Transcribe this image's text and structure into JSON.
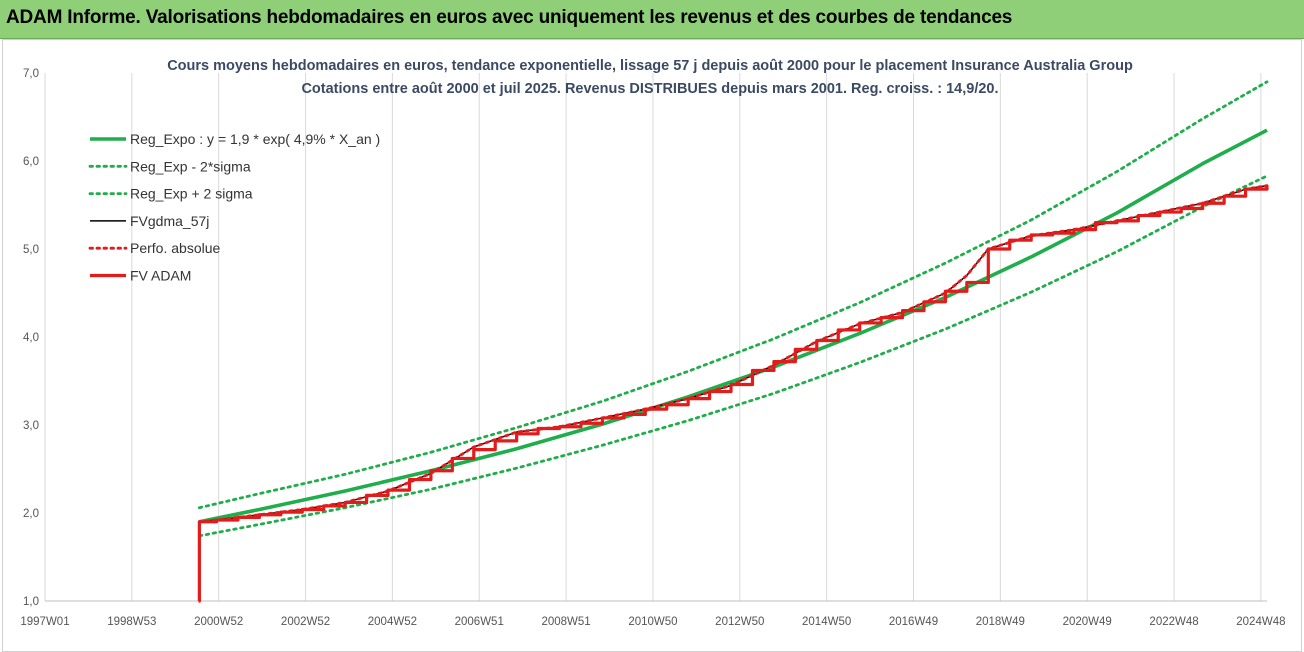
{
  "header": {
    "title": "ADAM Informe. Valorisations hebdomadaires en euros avec uniquement les revenus et des courbes de tendances"
  },
  "chart_data": {
    "type": "line",
    "title": "Cours moyens hebdomadaires en euros, tendance exponentielle, lissage 57 j depuis août 2000 pour le placement  Insurance Australia Group",
    "subtitle": "Cotations entre août 2000 et juil 2025. Revenus DISTRIBUES depuis mars 2001. Reg. croiss. : 14,9/20.",
    "xlabel": "",
    "ylabel": "",
    "xlim": [
      1997.0,
      2025.5
    ],
    "ylim": [
      1.0,
      7.0
    ],
    "x_ticks": [
      "1997W01",
      "1998W53",
      "2000W52",
      "2002W52",
      "2004W52",
      "2006W51",
      "2008W51",
      "2010W50",
      "2012W50",
      "2014W50",
      "2016W49",
      "2018W49",
      "2020W49",
      "2022W48",
      "2024W48"
    ],
    "y_ticks": [
      "1,0",
      "2,0",
      "3,0",
      "4,0",
      "5,0",
      "6,0",
      "7,0"
    ],
    "grid": "vertical",
    "legend_position": "top-left",
    "series": [
      {
        "name": "Reg_Expo : y = 1,9 * exp( 4,9% *  X_an )",
        "color": "#1fae4b",
        "style": "solid",
        "x": [
          2000.6,
          2002,
          2004,
          2006,
          2008,
          2010,
          2012,
          2014,
          2016,
          2018,
          2020,
          2022,
          2024,
          2025.5
        ],
        "values": [
          1.9,
          2.04,
          2.25,
          2.48,
          2.73,
          3.01,
          3.32,
          3.66,
          4.04,
          4.45,
          4.91,
          5.41,
          5.97,
          6.35
        ]
      },
      {
        "name": "Reg_Exp - 2*sigma",
        "color": "#1fae4b",
        "style": "dotted",
        "x": [
          2000.6,
          2002,
          2004,
          2006,
          2008,
          2010,
          2012,
          2014,
          2016,
          2018,
          2020,
          2022,
          2024,
          2025.5
        ],
        "values": [
          1.74,
          1.87,
          2.06,
          2.27,
          2.51,
          2.77,
          3.05,
          3.36,
          3.71,
          4.09,
          4.51,
          4.97,
          5.48,
          5.83
        ]
      },
      {
        "name": "Reg_Exp + 2 sigma",
        "color": "#1fae4b",
        "style": "dotted",
        "x": [
          2000.6,
          2002,
          2004,
          2006,
          2008,
          2010,
          2012,
          2014,
          2016,
          2018,
          2020,
          2022,
          2024,
          2025.5
        ],
        "values": [
          2.06,
          2.22,
          2.44,
          2.69,
          2.97,
          3.27,
          3.61,
          3.98,
          4.39,
          4.84,
          5.33,
          5.88,
          6.48,
          6.9
        ]
      },
      {
        "name": "FVgdma_57j",
        "color": "#000000",
        "style": "solid",
        "x": [
          2000.6,
          2001.0,
          2002.0,
          2003.0,
          2004.0,
          2005.0,
          2006.0,
          2007.0,
          2008.0,
          2009.0,
          2010.0,
          2011.0,
          2012.0,
          2013.0,
          2014.0,
          2015.0,
          2016.0,
          2017.0,
          2018.0,
          2018.5,
          2019.0,
          2020.0,
          2021.0,
          2022.0,
          2023.0,
          2024.0,
          2025.0,
          2025.5
        ],
        "values": [
          1.9,
          1.92,
          1.98,
          2.04,
          2.12,
          2.25,
          2.45,
          2.75,
          2.92,
          2.98,
          3.08,
          3.18,
          3.3,
          3.45,
          3.68,
          3.95,
          4.15,
          4.28,
          4.5,
          4.7,
          5.0,
          5.15,
          5.22,
          5.32,
          5.42,
          5.52,
          5.68,
          5.72
        ]
      },
      {
        "name": "Perfo. absolue",
        "color": "#e21b1b",
        "style": "dotted",
        "x": [
          2000.6,
          2001.0,
          2002.0,
          2003.0,
          2004.0,
          2005.0,
          2006.0,
          2007.0,
          2008.0,
          2009.0,
          2010.0,
          2011.0,
          2012.0,
          2013.0,
          2014.0,
          2015.0,
          2016.0,
          2017.0,
          2018.0,
          2018.5,
          2019.0,
          2020.0,
          2021.0,
          2022.0,
          2023.0,
          2024.0,
          2025.0,
          2025.5
        ],
        "values": [
          1.9,
          1.92,
          1.98,
          2.04,
          2.12,
          2.25,
          2.45,
          2.75,
          2.92,
          2.98,
          3.08,
          3.18,
          3.3,
          3.45,
          3.68,
          3.95,
          4.15,
          4.28,
          4.5,
          4.7,
          5.0,
          5.15,
          5.22,
          5.32,
          5.42,
          5.52,
          5.68,
          5.72
        ]
      },
      {
        "name": "FV ADAM",
        "color": "#e21b1b",
        "style": "step",
        "x": [
          2000.58,
          2000.6,
          2001.0,
          2001.5,
          2002.0,
          2002.5,
          2003.0,
          2003.5,
          2004.0,
          2004.5,
          2005.0,
          2005.5,
          2006.0,
          2006.5,
          2007.0,
          2007.5,
          2008.0,
          2008.5,
          2009.0,
          2009.5,
          2010.0,
          2010.5,
          2011.0,
          2011.5,
          2012.0,
          2012.5,
          2013.0,
          2013.5,
          2014.0,
          2014.5,
          2015.0,
          2015.5,
          2016.0,
          2016.5,
          2017.0,
          2017.5,
          2018.0,
          2018.5,
          2019.0,
          2019.5,
          2020.0,
          2020.5,
          2021.0,
          2021.5,
          2022.0,
          2022.5,
          2023.0,
          2023.5,
          2024.0,
          2024.5,
          2025.0,
          2025.5
        ],
        "values": [
          1.0,
          1.9,
          1.92,
          1.95,
          1.98,
          2.01,
          2.04,
          2.08,
          2.12,
          2.2,
          2.26,
          2.38,
          2.48,
          2.62,
          2.72,
          2.82,
          2.9,
          2.96,
          2.98,
          3.02,
          3.08,
          3.12,
          3.18,
          3.23,
          3.3,
          3.38,
          3.46,
          3.62,
          3.72,
          3.86,
          3.96,
          4.08,
          4.16,
          4.22,
          4.3,
          4.4,
          4.52,
          4.62,
          5.0,
          5.1,
          5.16,
          5.18,
          5.22,
          5.3,
          5.32,
          5.38,
          5.42,
          5.46,
          5.52,
          5.6,
          5.68,
          5.72
        ]
      }
    ]
  }
}
